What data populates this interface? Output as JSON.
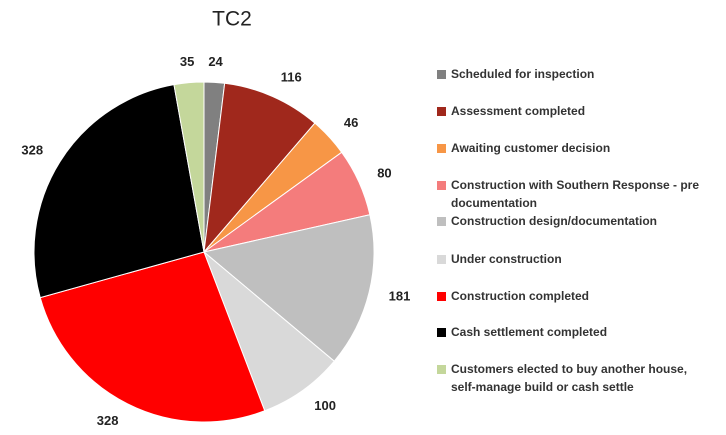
{
  "chart_data": {
    "type": "pie",
    "title": "TC2",
    "categories": [
      "Scheduled for inspection",
      "Assessment completed",
      "Awaiting customer decision",
      "Construction with Southern Response - pre documentation",
      "Construction design/documentation",
      "Under construction",
      "Construction completed",
      "Cash settlement completed",
      "Customers elected to buy another house, self-manage build or cash settle"
    ],
    "values": [
      24,
      116,
      46,
      80,
      181,
      100,
      328,
      328,
      35
    ],
    "colors": [
      "#808080",
      "#a0281c",
      "#f79646",
      "#f47c7c",
      "#bfbfbf",
      "#d9d9d9",
      "#ff0000",
      "#000000",
      "#c4d79b"
    ],
    "legend": "right"
  }
}
